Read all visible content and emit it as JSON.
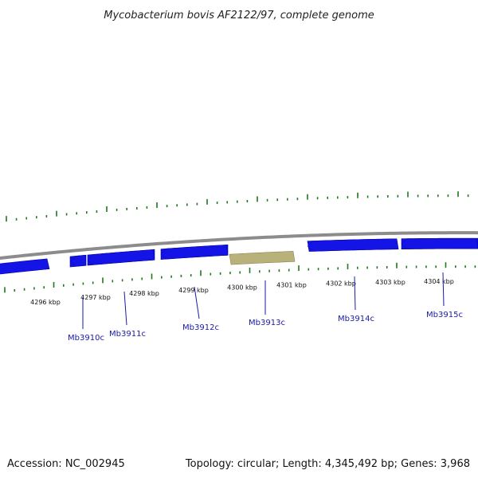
{
  "title": "Mycobacterium bovis AF2122/97, complete genome",
  "footer": {
    "accession": "Accession: NC_002945",
    "summary": "Topology: circular; Length: 4,345,492 bp; Genes: 3,968"
  },
  "colors": {
    "gene": "#1414e6",
    "gene_highlight": "#b8b27a",
    "ticks": "#1d7a1d",
    "backbone": "#8c8c8c",
    "label": "#1a1aa8",
    "text": "#111111"
  },
  "ruler_labels": [
    "4296 kbp",
    "4297 kbp",
    "4298 kbp",
    "4299 kbp",
    "4300 kbp",
    "4301 kbp",
    "4302 kbp",
    "4303 kbp",
    "4304 kbp"
  ],
  "genes": [
    {
      "id": "Mb3910c",
      "strand": "-",
      "highlighted": false
    },
    {
      "id": "Mb3911c",
      "strand": "-",
      "highlighted": false
    },
    {
      "id": "Mb3912c",
      "strand": "-",
      "highlighted": false
    },
    {
      "id": "Mb3913c",
      "strand": "-",
      "highlighted": true
    },
    {
      "id": "Mb3914c",
      "strand": "-",
      "highlighted": false
    },
    {
      "id": "Mb3915c",
      "strand": "-",
      "highlighted": false
    }
  ]
}
